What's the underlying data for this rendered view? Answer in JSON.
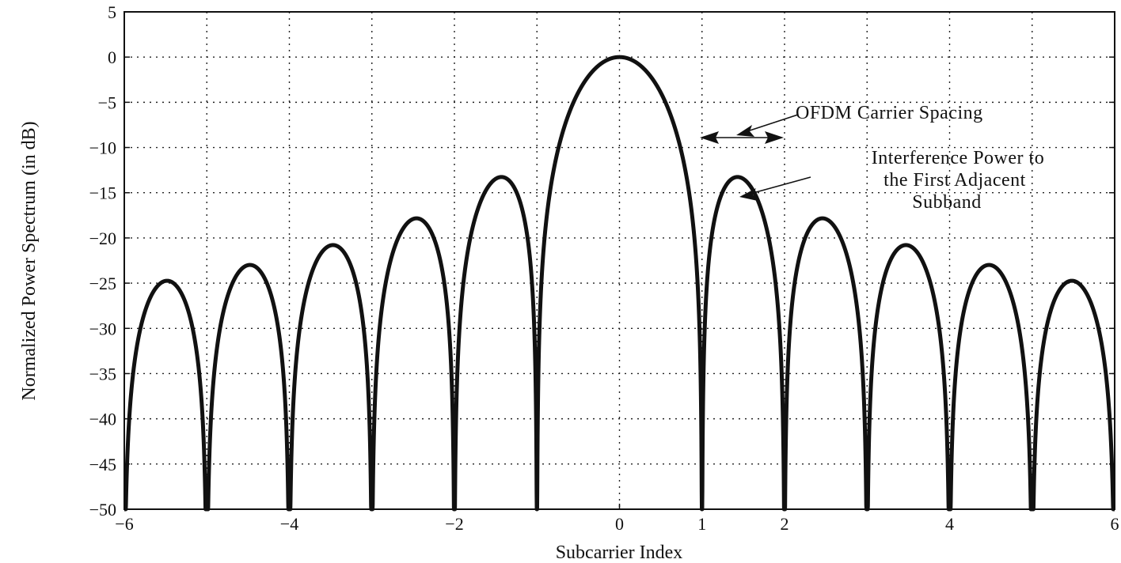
{
  "chart_data": {
    "type": "line",
    "title": "",
    "xlabel": "Subcarrier Index",
    "ylabel": "Normalized Power Spectrum (in dB)",
    "xlim": [
      -6,
      6
    ],
    "ylim": [
      -50,
      5
    ],
    "xticks": [
      -6,
      -4,
      -2,
      0,
      1,
      2,
      4,
      6
    ],
    "xtick_labels": [
      "−6",
      "−4",
      "−2",
      "0",
      "1",
      "2",
      "4",
      "6"
    ],
    "yticks": [
      5,
      0,
      -5,
      -10,
      -15,
      -20,
      -25,
      -30,
      -35,
      -40,
      -45,
      -50
    ],
    "ytick_labels": [
      "5",
      "0",
      "−5",
      "−10",
      "−15",
      "−20",
      "−25",
      "−30",
      "−35",
      "−40",
      "−45",
      "−50"
    ],
    "grid": true,
    "x_grid_lines": [
      -5,
      -4,
      -3,
      -2,
      -1,
      0,
      1,
      2,
      3,
      4,
      5
    ],
    "series": [
      {
        "description": "sinc-squared spectrum, main lobe peak 0 dB at 0, nulls at integers",
        "x": [
          -5.5,
          -4.5,
          -3.5,
          -2.5,
          -1.5,
          0,
          1.5,
          2.5,
          3.5,
          4.5,
          5.5
        ],
        "y": [
          -29.6,
          -27.6,
          -24.9,
          -21.4,
          -15.9,
          0,
          -15.9,
          -21.4,
          -24.9,
          -27.6,
          -29.6
        ],
        "color": "#111111"
      }
    ],
    "annotations": [
      {
        "lines": [
          "OFDM Carrier Spacing"
        ]
      },
      {
        "lines": [
          "Interference Power to",
          "the First Adjacent",
          "Subband"
        ]
      }
    ]
  }
}
